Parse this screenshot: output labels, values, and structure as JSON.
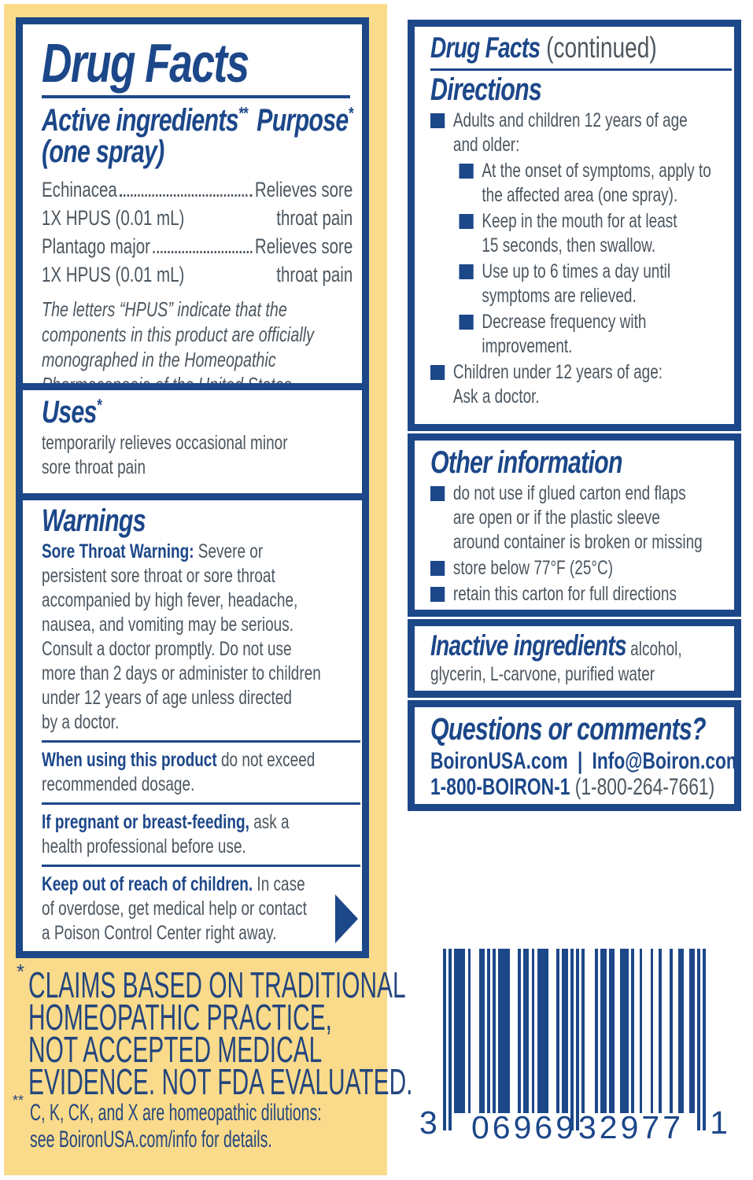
{
  "colors": {
    "navy": "#1C4789",
    "body_text": "#4C565F",
    "yellow": "#F9DB8B",
    "white": "#FFFFFF"
  },
  "left_panel": {
    "title": "Drug Facts",
    "active": {
      "heading_left": "Active ingredients",
      "heading_left_sup": "**",
      "heading_right": "Purpose",
      "heading_right_sup": "*",
      "heading_line2": "(one spray)",
      "ingredients": [
        {
          "name": "Echinacea",
          "detail": "1X HPUS (0.01 mL)",
          "purpose1": "Relieves sore",
          "purpose2": "throat pain"
        },
        {
          "name": "Plantago major",
          "detail": "1X HPUS (0.01 mL)",
          "purpose1": "Relieves sore",
          "purpose2": "throat pain"
        }
      ],
      "hpus_note": "The letters “HPUS” indicate that the\ncomponents in this product are officially\nmonographed in the Homeopathic\nPharmacopoeia of the United States."
    },
    "uses": {
      "heading": "Uses",
      "sup": "*",
      "text": "temporarily relieves occasional minor\nsore throat pain"
    },
    "warnings": {
      "heading": "Warnings",
      "sore_throat_lead": "Sore Throat Warning:",
      "sore_throat_text": " Severe or\npersistent sore throat or sore throat\naccompanied by high fever, headache,\nnausea, and vomiting may be serious.\nConsult a doctor promptly. Do not use\nmore than 2 days or administer to children\nunder 12 years of age unless directed\nby a doctor.",
      "when_using_lead": "When using this product",
      "when_using_text": " do not exceed\nrecommended dosage.",
      "pregnant_lead": "If pregnant or breast-feeding,",
      "pregnant_text": " ask a\nhealth professional before use.",
      "keep_lead": "Keep out of reach of children.",
      "keep_text": " In case\nof overdose, get medical help or contact\na Poison Control Center right away."
    },
    "claims_sup": "*",
    "claims": "CLAIMS BASED ON TRADITIONAL\nHOMEOPATHIC PRACTICE,\nNOT ACCEPTED MEDICAL\nEVIDENCE. NOT FDA EVALUATED.",
    "dilutions_sup": "**",
    "dilutions": "C, K, CK, and X are homeopathic dilutions:\nsee BoironUSA.com/info for details."
  },
  "right_panel": {
    "title": "Drug Facts",
    "title_suffix": "(continued)",
    "directions": {
      "heading": "Directions",
      "items": [
        {
          "level": 1,
          "text": "Adults and children 12 years of age\nand older:"
        },
        {
          "level": 2,
          "text": "At the onset of symptoms, apply to\nthe affected area (one spray)."
        },
        {
          "level": 2,
          "text": "Keep in the mouth for at least\n15 seconds, then swallow."
        },
        {
          "level": 2,
          "text": "Use up to 6 times a day until\nsymptoms are relieved."
        },
        {
          "level": 2,
          "text": "Decrease frequency with\nimprovement."
        },
        {
          "level": 1,
          "text": "Children under 12 years of age:\nAsk a doctor."
        }
      ]
    },
    "other_info": {
      "heading": "Other information",
      "items": [
        {
          "level": 1,
          "text": "do not use if glued carton end flaps\nare open or if the plastic sleeve\naround container is broken or missing"
        },
        {
          "level": 1,
          "text": "store below 77°F (25°C)"
        },
        {
          "level": 1,
          "text": "retain this carton for full directions"
        }
      ]
    },
    "inactive": {
      "heading": "Inactive ingredients",
      "text": " alcohol,\nglycerin, L-carvone, purified water"
    },
    "questions": {
      "heading": "Questions or comments?",
      "line1_a": "BoironUSA.com",
      "line1_sep": "|",
      "line1_b": "Info@Boiron.com",
      "line2_bold": "1-800-BOIRON-1",
      "line2_normal": " (1-800-264-7661)"
    }
  },
  "barcode": {
    "digits": "306969329771",
    "display_left": "3",
    "display_group1": "06969",
    "display_group2": "32977",
    "display_right": "1"
  }
}
